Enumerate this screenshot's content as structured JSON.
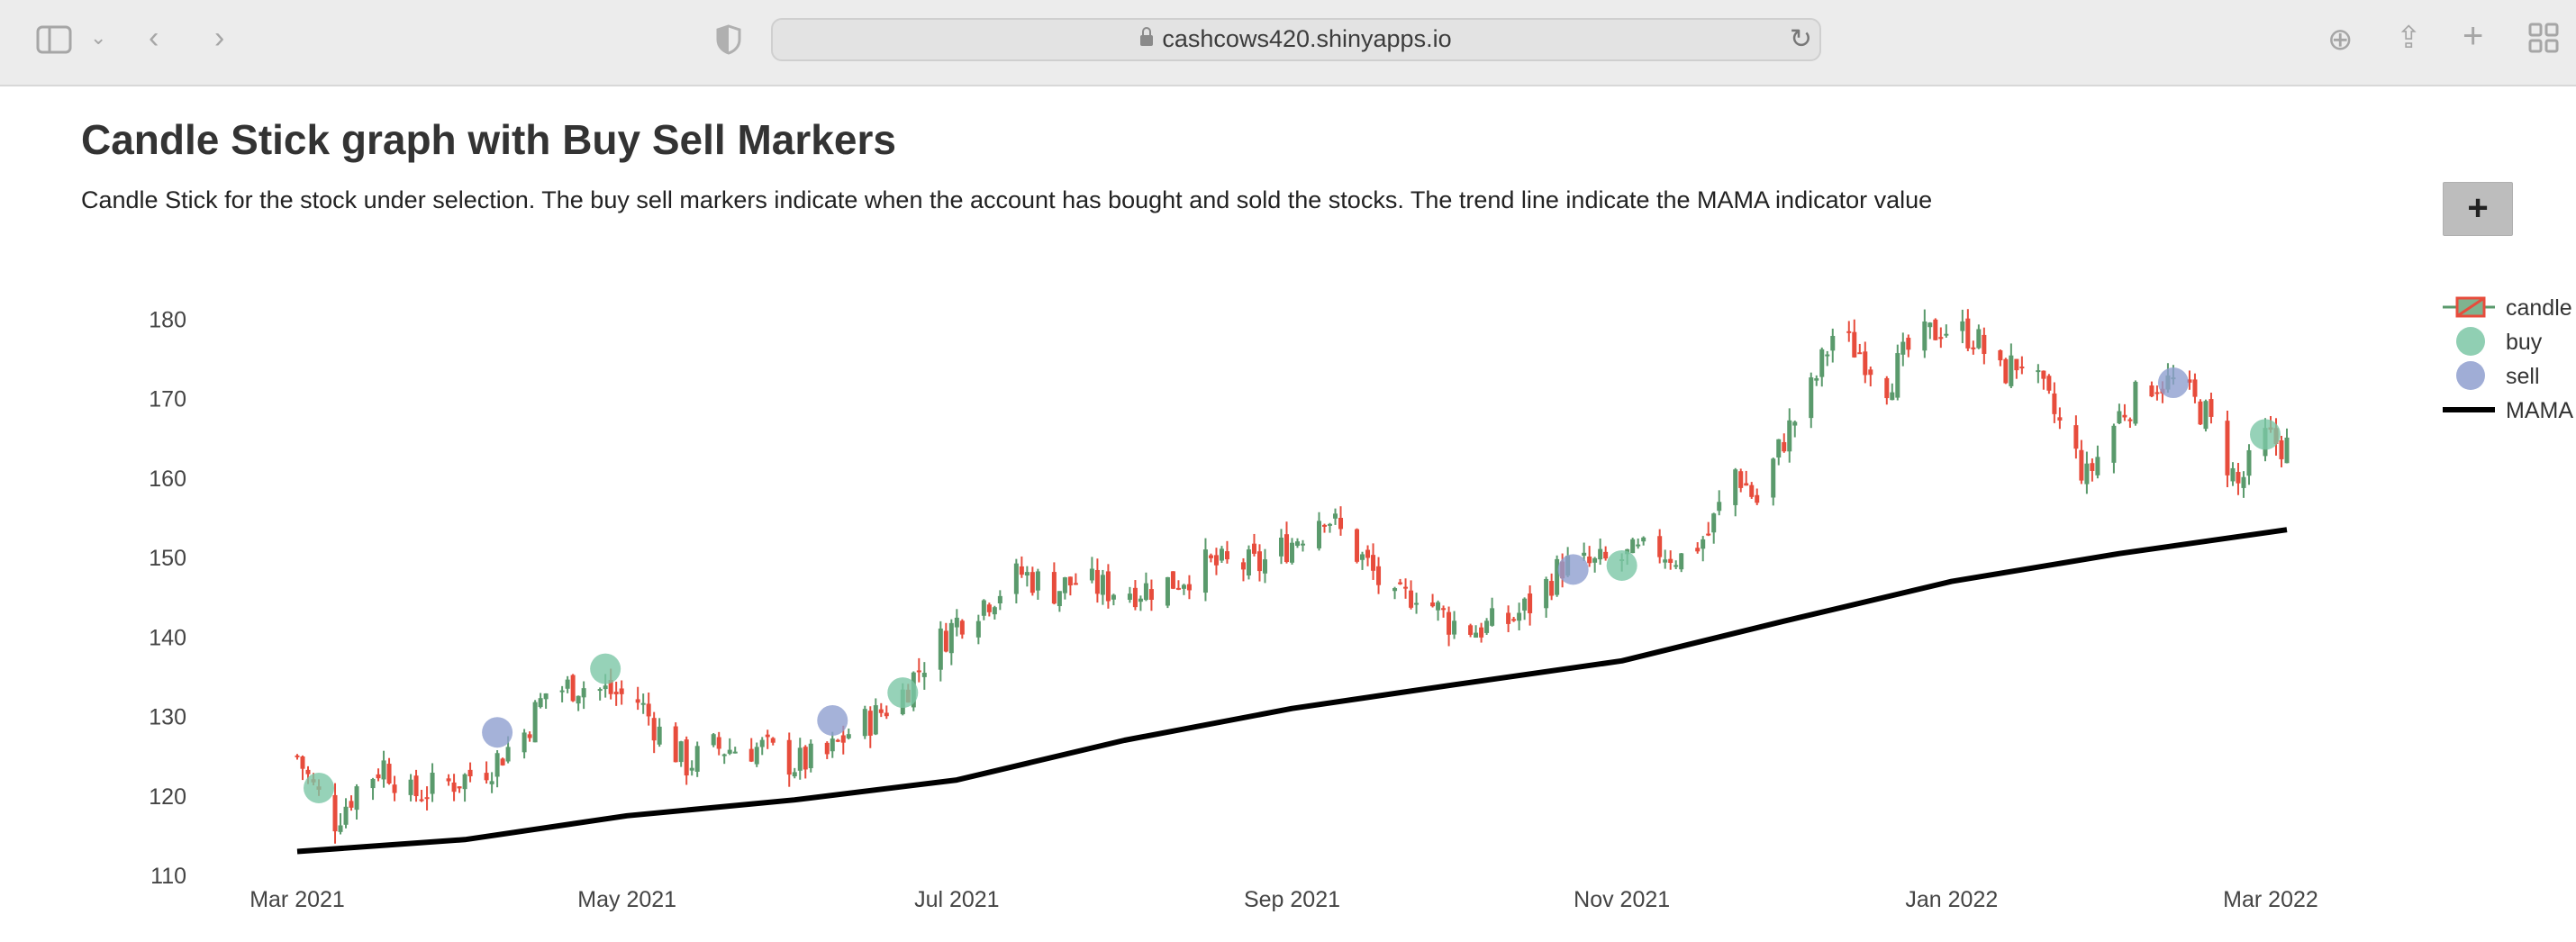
{
  "browser": {
    "url": "cashcows420.shinyapps.io"
  },
  "page": {
    "title": "Candle Stick graph with Buy Sell Markers",
    "description": "Candle Stick for the stock under selection. The buy sell markers indicate when the account has bought and sold the stocks. The trend line indicate the MAMA indicator value",
    "expand_label": "+"
  },
  "chart_data": {
    "type": "candlestick",
    "title": "",
    "xlabel": "",
    "ylabel": "",
    "ylim": [
      110,
      183
    ],
    "y_ticks": [
      110,
      120,
      130,
      140,
      150,
      160,
      170,
      180
    ],
    "x_range": [
      "2021-03-01",
      "2022-03-05"
    ],
    "x_ticks": [
      {
        "date": "2021-03-01",
        "label": "Mar 2021"
      },
      {
        "date": "2021-05-01",
        "label": "May 2021"
      },
      {
        "date": "2021-07-01",
        "label": "Jul 2021"
      },
      {
        "date": "2021-09-01",
        "label": "Sep 2021"
      },
      {
        "date": "2021-11-01",
        "label": "Nov 2021"
      },
      {
        "date": "2022-01-01",
        "label": "Jan 2022"
      },
      {
        "date": "2022-03-01",
        "label": "Mar 2022"
      }
    ],
    "legend": [
      "candle",
      "buy",
      "sell",
      "MAMA"
    ],
    "legend_position": "top-right",
    "grid": false,
    "colors": {
      "increasing": "#5a9a6c",
      "decreasing": "#e74c3c",
      "buy": "#7cc7a6",
      "sell": "#8f9fcf",
      "mama": "#000000"
    },
    "close_series": [
      [
        "2021-03-01",
        125
      ],
      [
        "2021-03-04",
        121
      ],
      [
        "2021-03-08",
        117
      ],
      [
        "2021-03-12",
        121
      ],
      [
        "2021-03-17",
        124
      ],
      [
        "2021-03-22",
        120
      ],
      [
        "2021-03-26",
        121
      ],
      [
        "2021-03-31",
        122
      ],
      [
        "2021-04-06",
        124
      ],
      [
        "2021-04-12",
        128
      ],
      [
        "2021-04-16",
        133
      ],
      [
        "2021-04-22",
        134
      ],
      [
        "2021-04-28",
        133
      ],
      [
        "2021-05-03",
        132
      ],
      [
        "2021-05-07",
        128
      ],
      [
        "2021-05-12",
        124
      ],
      [
        "2021-05-17",
        126
      ],
      [
        "2021-05-21",
        126
      ],
      [
        "2021-05-26",
        126
      ],
      [
        "2021-06-01",
        124
      ],
      [
        "2021-06-07",
        125
      ],
      [
        "2021-06-11",
        128
      ],
      [
        "2021-06-16",
        130
      ],
      [
        "2021-06-21",
        133
      ],
      [
        "2021-06-25",
        137
      ],
      [
        "2021-07-01",
        142
      ],
      [
        "2021-07-07",
        145
      ],
      [
        "2021-07-13",
        148
      ],
      [
        "2021-07-19",
        146
      ],
      [
        "2021-07-23",
        147
      ],
      [
        "2021-07-29",
        146
      ],
      [
        "2021-08-04",
        146
      ],
      [
        "2021-08-10",
        147
      ],
      [
        "2021-08-16",
        149
      ],
      [
        "2021-08-20",
        149
      ],
      [
        "2021-08-26",
        149
      ],
      [
        "2021-09-01",
        152
      ],
      [
        "2021-09-07",
        156
      ],
      [
        "2021-09-10",
        153
      ],
      [
        "2021-09-15",
        149
      ],
      [
        "2021-09-20",
        144
      ],
      [
        "2021-09-24",
        146
      ],
      [
        "2021-09-30",
        142
      ],
      [
        "2021-10-05",
        141
      ],
      [
        "2021-10-11",
        142
      ],
      [
        "2021-10-15",
        144
      ],
      [
        "2021-10-21",
        149
      ],
      [
        "2021-10-27",
        149
      ],
      [
        "2021-11-02",
        150
      ],
      [
        "2021-11-08",
        151
      ],
      [
        "2021-11-12",
        150
      ],
      [
        "2021-11-17",
        153
      ],
      [
        "2021-11-22",
        161
      ],
      [
        "2021-11-26",
        157
      ],
      [
        "2021-12-01",
        165
      ],
      [
        "2021-12-06",
        171
      ],
      [
        "2021-12-10",
        178
      ],
      [
        "2021-12-15",
        176
      ],
      [
        "2021-12-20",
        172
      ],
      [
        "2021-12-24",
        176
      ],
      [
        "2021-12-30",
        179
      ],
      [
        "2022-01-05",
        178
      ],
      [
        "2022-01-10",
        173
      ],
      [
        "2022-01-14",
        175
      ],
      [
        "2022-01-20",
        168
      ],
      [
        "2022-01-26",
        160
      ],
      [
        "2022-02-01",
        168
      ],
      [
        "2022-02-07",
        172
      ],
      [
        "2022-02-11",
        172
      ],
      [
        "2022-02-17",
        168
      ],
      [
        "2022-02-23",
        159
      ],
      [
        "2022-02-28",
        165
      ],
      [
        "2022-03-04",
        164
      ]
    ],
    "buy_markers": [
      {
        "date": "2021-03-05",
        "price": 121
      },
      {
        "date": "2021-04-27",
        "price": 136
      },
      {
        "date": "2021-06-21",
        "price": 133
      },
      {
        "date": "2021-11-01",
        "price": 149
      },
      {
        "date": "2022-02-28",
        "price": 165.5
      }
    ],
    "sell_markers": [
      {
        "date": "2021-04-07",
        "price": 128
      },
      {
        "date": "2021-06-08",
        "price": 129.5
      },
      {
        "date": "2021-10-23",
        "price": 148.5
      },
      {
        "date": "2022-02-11",
        "price": 172
      }
    ],
    "mama": [
      [
        "2021-03-01",
        113
      ],
      [
        "2021-04-01",
        114.5
      ],
      [
        "2021-05-01",
        117.5
      ],
      [
        "2021-06-01",
        119.5
      ],
      [
        "2021-07-01",
        122
      ],
      [
        "2021-08-01",
        127
      ],
      [
        "2021-09-01",
        131
      ],
      [
        "2021-10-01",
        134
      ],
      [
        "2021-11-01",
        137
      ],
      [
        "2021-12-01",
        142
      ],
      [
        "2022-01-01",
        147
      ],
      [
        "2022-02-01",
        150.5
      ],
      [
        "2022-03-04",
        153.5
      ]
    ]
  }
}
